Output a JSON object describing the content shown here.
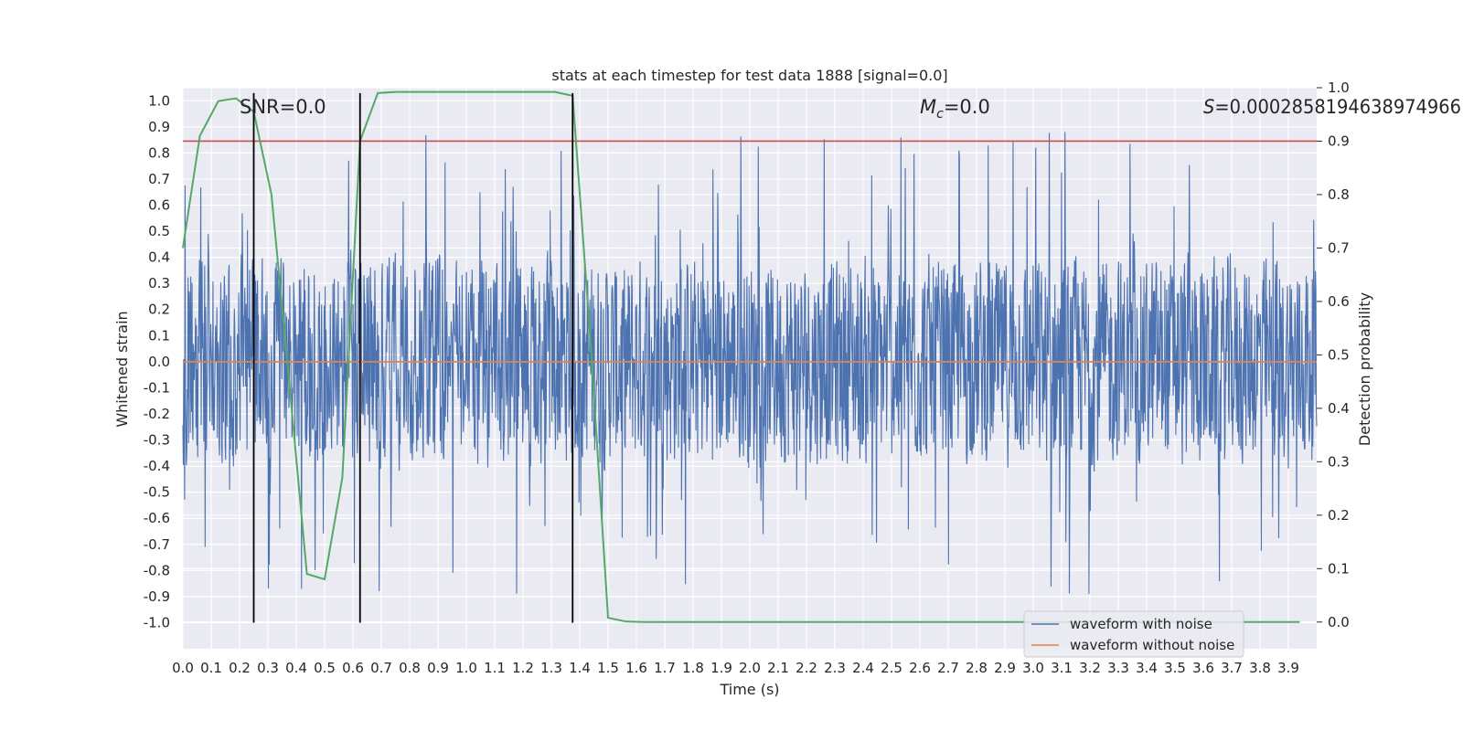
{
  "chart_data": {
    "type": "line",
    "title": "stats at each timestep for test data 1888 [signal=0.0]",
    "xlabel": "Time (s)",
    "ylabel": "Whitened strain",
    "y2label": "Detection probability",
    "xlim": [
      0.0,
      4.0
    ],
    "ylim": [
      -1.1,
      1.05
    ],
    "y2lim": [
      -0.05,
      1.0
    ],
    "x_ticks": [
      "0.0",
      "0.1",
      "0.2",
      "0.3",
      "0.4",
      "0.5",
      "0.6",
      "0.7",
      "0.8",
      "0.9",
      "1.0",
      "1.1",
      "1.2",
      "1.3",
      "1.4",
      "1.5",
      "1.6",
      "1.7",
      "1.8",
      "1.9",
      "2.0",
      "2.1",
      "2.2",
      "2.3",
      "2.4",
      "2.5",
      "2.6",
      "2.7",
      "2.8",
      "2.9",
      "3.0",
      "3.1",
      "3.2",
      "3.3",
      "3.4",
      "3.5",
      "3.6",
      "3.7",
      "3.8",
      "3.9"
    ],
    "y_ticks": [
      "1.0",
      "0.9",
      "0.8",
      "0.7",
      "0.6",
      "0.5",
      "0.4",
      "0.3",
      "0.2",
      "0.1",
      "0.0",
      "-0.1",
      "-0.2",
      "-0.3",
      "-0.4",
      "-0.5",
      "-0.6",
      "-0.7",
      "-0.8",
      "-0.9",
      "-1.0"
    ],
    "y2_ticks": [
      "1.0",
      "0.9",
      "0.8",
      "0.7",
      "0.6",
      "0.5",
      "0.4",
      "0.3",
      "0.2",
      "0.1",
      "0.0"
    ],
    "annotations": {
      "snr": "SNR=0.0",
      "mc_symbol": "M",
      "mc_sub": "c",
      "mc_value": "=0.0",
      "s_symbol": "S",
      "s_value": "=0.0002858194638974966"
    },
    "threshold": {
      "value": 0.9,
      "axis": "y2",
      "color": "#c44e52"
    },
    "vertical_lines": [
      0.25,
      0.625,
      1.375
    ],
    "series": [
      {
        "name": "waveform with noise",
        "color": "#4c72b0",
        "axis": "y1",
        "description": "dense noisy strain, amplitude mostly within ±0.5 with spikes up to about ±0.9",
        "amplitude_envelope": [
          -1.0,
          0.94
        ]
      },
      {
        "name": "waveform without noise",
        "color": "#dd8452",
        "axis": "y1",
        "x": [
          0.0,
          4.0
        ],
        "y": [
          0.0,
          0.0
        ]
      },
      {
        "name": "detection probability",
        "color": "#55a868",
        "axis": "y2",
        "x": [
          0.0,
          0.06,
          0.125,
          0.1875,
          0.25,
          0.3125,
          0.375,
          0.4375,
          0.5,
          0.5625,
          0.625,
          0.6875,
          0.75,
          0.8125,
          1.0,
          1.25,
          1.3125,
          1.375,
          1.4375,
          1.5,
          1.5625,
          1.625,
          2.0,
          3.0,
          3.94
        ],
        "y": [
          0.7,
          0.91,
          0.975,
          0.98,
          0.955,
          0.8,
          0.45,
          0.09,
          0.08,
          0.27,
          0.9,
          0.99,
          0.992,
          0.992,
          0.992,
          0.992,
          0.992,
          0.985,
          0.53,
          0.008,
          0.001,
          0.0,
          0.0,
          0.0,
          0.0
        ]
      }
    ],
    "legend": {
      "position": "lower-right",
      "entries": [
        {
          "label": "waveform with noise",
          "color": "#4c72b0"
        },
        {
          "label": "waveform without noise",
          "color": "#dd8452"
        }
      ]
    }
  }
}
